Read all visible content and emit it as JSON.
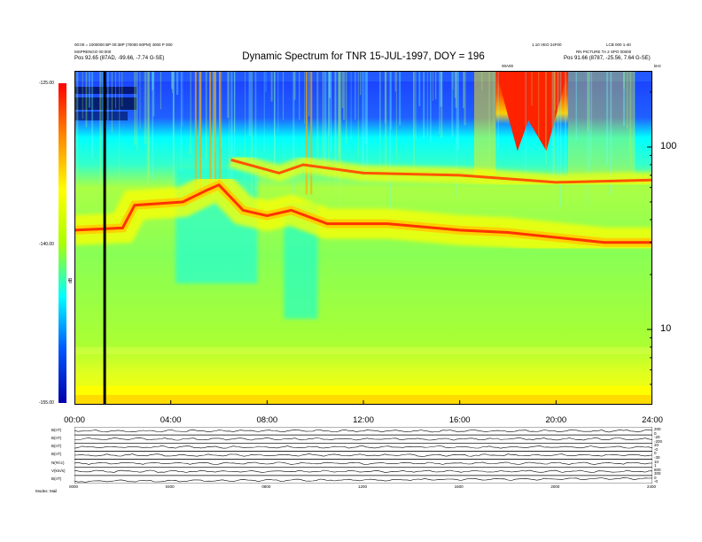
{
  "header": {
    "title": "Dynamic Spectrum for TNR 15-JUL-1997, DOY = 196",
    "left_line1": "00:00 = 1000000 BP 00:38P (70000 60PM) 4000 P 000",
    "left_line2": "MSPRENGO 00:000",
    "left_line3": "Pos    92.65 (87AD, -99.66, -7.74 G-SE)",
    "right_line1": "1.10 VEO 24F00",
    "right_line2": "LCB 000 1-40",
    "right_line3": "RN PICTURE TA 2 SPO 00000",
    "right_line4": "Pos    91.66 (8787, -25.56, 7.64 G-SE)",
    "marker_label": "00A00",
    "corner_label": "kHz"
  },
  "colorbar": {
    "title": "dB",
    "ticks": [
      "-125.00",
      "-140.00",
      "-155.00"
    ],
    "colors": [
      "#0000aa",
      "#0055ff",
      "#00ffff",
      "#aaff00",
      "#ffff00",
      "#ff8800",
      "#ff0000"
    ]
  },
  "chart_data": [
    {
      "type": "heatmap",
      "title": "Dynamic Spectrum for TNR 15-JUL-1997, DOY = 196",
      "x_ticks": [
        "00:00",
        "04:00",
        "08:00",
        "12:00",
        "16:00",
        "20:00",
        "24:00"
      ],
      "xlim_hours": [
        0,
        24
      ],
      "y_scale": "log",
      "y_ticks": [
        100,
        10
      ],
      "y_unit": "kHz",
      "color_scale_db": [
        -155,
        -125
      ],
      "emission_band_freq_khz": [
        {
          "hour": 0,
          "khz": 35
        },
        {
          "hour": 2,
          "khz": 36
        },
        {
          "hour": 2.5,
          "khz": 48
        },
        {
          "hour": 4.5,
          "khz": 50
        },
        {
          "hour": 5.5,
          "khz": 58
        },
        {
          "hour": 6,
          "khz": 62
        },
        {
          "hour": 7,
          "khz": 45
        },
        {
          "hour": 8,
          "khz": 42
        },
        {
          "hour": 9,
          "khz": 45
        },
        {
          "hour": 10.5,
          "khz": 38
        },
        {
          "hour": 13,
          "khz": 38
        },
        {
          "hour": 16,
          "khz": 35
        },
        {
          "hour": 18,
          "khz": 34
        },
        {
          "hour": 22,
          "khz": 30
        },
        {
          "hour": 24,
          "khz": 30
        }
      ],
      "upper_band_freq_khz": [
        {
          "hour": 6.5,
          "khz": 85
        },
        {
          "hour": 8.5,
          "khz": 72
        },
        {
          "hour": 9.5,
          "khz": 80
        },
        {
          "hour": 12,
          "khz": 72
        },
        {
          "hour": 16,
          "khz": 70
        },
        {
          "hour": 20,
          "khz": 64
        },
        {
          "hour": 24,
          "khz": 66
        }
      ],
      "burst_interval_hours": [
        17.5,
        20.5
      ],
      "data_gap_hour": 1.2
    },
    {
      "type": "line",
      "x_ticks": [
        "0000",
        "0400",
        "0800",
        "1200",
        "1600",
        "2000",
        "2400"
      ],
      "panels": [
        {
          "label": "B(nT)",
          "right_ticks": [
            "200",
            "0"
          ]
        },
        {
          "label": "B(nT)",
          "right_ticks": [
            "-20",
            "-200"
          ]
        },
        {
          "label": "B(nT)",
          "right_ticks": [
            "20",
            "-0"
          ]
        },
        {
          "label": "B(nT)",
          "right_ticks": [
            "0",
            "-30"
          ]
        },
        {
          "label": "N(#/cc)",
          "right_ticks": [
            "10",
            "1"
          ]
        },
        {
          "label": "V(km/s)",
          "right_ticks": [
            "800",
            "300"
          ]
        },
        {
          "label": "B(nT)",
          "right_ticks": [
            "0",
            "-0"
          ]
        }
      ],
      "footer_label": "Modes: Mail"
    }
  ]
}
